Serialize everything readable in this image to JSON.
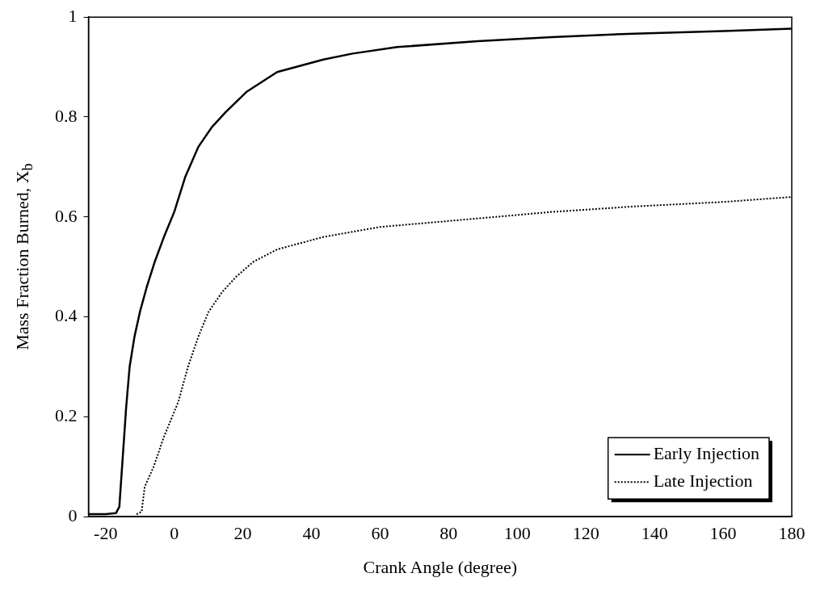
{
  "chart_data": {
    "type": "line",
    "xlabel": "Crank Angle (degree)",
    "ylabel": "Mass Fraction Burned, X$_{b}$",
    "xlim": [
      -25,
      180
    ],
    "xticks": [
      -20,
      0,
      20,
      40,
      60,
      80,
      100,
      120,
      140,
      160,
      180
    ],
    "ylim": [
      0,
      1
    ],
    "yticks": [
      0,
      0.2,
      0.4,
      0.6,
      0.8,
      1
    ],
    "legend": "bottom right",
    "marker": "none",
    "series": [
      {
        "name": "Early Injection",
        "color": "#000000",
        "line_style": "solid",
        "x": [
          -25,
          -20,
          -17,
          -16,
          -15,
          -14,
          -13,
          -11.6,
          -10,
          -8,
          -5.7,
          -3,
          0,
          3.2,
          7,
          11,
          15,
          21,
          30,
          43.5,
          52,
          65,
          88.5,
          110,
          134,
          160,
          180
        ],
        "values": [
          0.005,
          0.005,
          0.007,
          0.02,
          0.12,
          0.22,
          0.3,
          0.36,
          0.41,
          0.46,
          0.51,
          0.56,
          0.61,
          0.68,
          0.74,
          0.78,
          0.81,
          0.85,
          0.89,
          0.915,
          0.927,
          0.94,
          0.952,
          0.96,
          0.967,
          0.972,
          0.977
        ]
      },
      {
        "name": "Late Injection",
        "color": "#000000",
        "line_style": "dotted",
        "x": [
          -11,
          -9.5,
          -8.6,
          -6,
          -3,
          0,
          1.2,
          4,
          7,
          10,
          14,
          18,
          23,
          30,
          43.5,
          60,
          88.5,
          110,
          134,
          160,
          180
        ],
        "values": [
          0.005,
          0.01,
          0.06,
          0.1,
          0.16,
          0.21,
          0.23,
          0.3,
          0.36,
          0.41,
          0.45,
          0.48,
          0.51,
          0.535,
          0.56,
          0.58,
          0.597,
          0.61,
          0.621,
          0.63,
          0.64
        ]
      }
    ]
  }
}
